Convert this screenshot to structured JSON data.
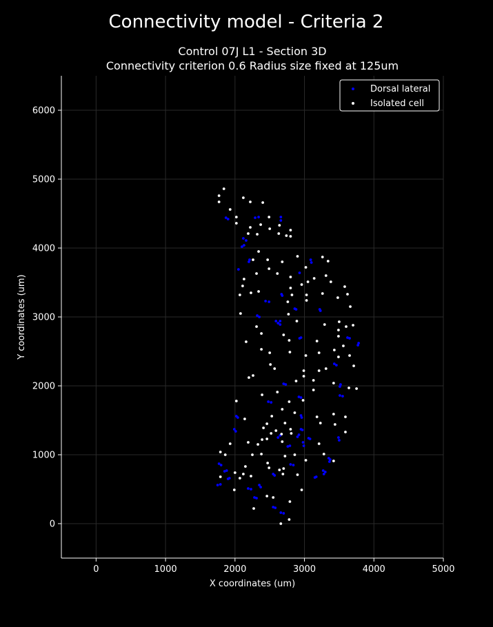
{
  "figure": {
    "suptitle": "Connectivity model - Criteria 2",
    "title_line1": "Control 07J L1 - Section 3D",
    "title_line2": "Connectivity criterion 0.6  Radius size fixed at 125um"
  },
  "colors": {
    "background": "#000000",
    "foreground": "#ffffff",
    "dorsal_lateral": "#0000ff",
    "isolated": "#ffffff",
    "grid": "#2a2a2a"
  },
  "chart_data": {
    "type": "scatter",
    "xlabel": "X coordinates (um)",
    "ylabel": "Y coordinates (um)",
    "xlim": [
      -500,
      5000
    ],
    "ylim": [
      -500,
      6500
    ],
    "xticks": [
      0,
      1000,
      2000,
      3000,
      4000,
      5000
    ],
    "yticks": [
      0,
      1000,
      2000,
      3000,
      4000,
      5000,
      6000
    ],
    "grid": true,
    "legend_position": "top-right",
    "series": [
      {
        "name": "Dorsal lateral",
        "color": "#0000ff",
        "points": [
          [
            1870,
            4440
          ],
          [
            1900,
            4420
          ],
          [
            2290,
            4440
          ],
          [
            2340,
            4450
          ],
          [
            2660,
            4450
          ],
          [
            2660,
            4400
          ],
          [
            2120,
            4140
          ],
          [
            2160,
            4110
          ],
          [
            2100,
            4020
          ],
          [
            2130,
            4040
          ],
          [
            2050,
            3690
          ],
          [
            2200,
            3800
          ],
          [
            2210,
            3830
          ],
          [
            3090,
            3830
          ],
          [
            3100,
            3790
          ],
          [
            2930,
            3640
          ],
          [
            2440,
            3230
          ],
          [
            2490,
            3220
          ],
          [
            2670,
            3330
          ],
          [
            2680,
            3310
          ],
          [
            2860,
            3120
          ],
          [
            2880,
            3110
          ],
          [
            3220,
            3110
          ],
          [
            3230,
            3090
          ],
          [
            2320,
            3020
          ],
          [
            2350,
            3000
          ],
          [
            2590,
            2940
          ],
          [
            2620,
            2910
          ],
          [
            2650,
            2940
          ],
          [
            2650,
            2890
          ],
          [
            2930,
            2690
          ],
          [
            2950,
            2700
          ],
          [
            3620,
            2700
          ],
          [
            3650,
            2690
          ],
          [
            3780,
            2620
          ],
          [
            3770,
            2590
          ],
          [
            3430,
            2320
          ],
          [
            3460,
            2300
          ],
          [
            2700,
            2030
          ],
          [
            2730,
            2020
          ],
          [
            3510,
            1990
          ],
          [
            3520,
            2020
          ],
          [
            3510,
            1860
          ],
          [
            3550,
            1850
          ],
          [
            2920,
            1840
          ],
          [
            2950,
            1830
          ],
          [
            2480,
            1770
          ],
          [
            2520,
            1760
          ],
          [
            2020,
            1560
          ],
          [
            2040,
            1540
          ],
          [
            2950,
            1570
          ],
          [
            2960,
            1540
          ],
          [
            1990,
            1370
          ],
          [
            2010,
            1340
          ],
          [
            2970,
            1360
          ],
          [
            2950,
            1370
          ],
          [
            2620,
            1250
          ],
          [
            2650,
            1280
          ],
          [
            2900,
            1260
          ],
          [
            2920,
            1290
          ],
          [
            3060,
            1240
          ],
          [
            3080,
            1230
          ],
          [
            2980,
            1180
          ],
          [
            2990,
            1130
          ],
          [
            3490,
            1250
          ],
          [
            3500,
            1210
          ],
          [
            2760,
            1120
          ],
          [
            2790,
            1130
          ],
          [
            3350,
            950
          ],
          [
            3370,
            930
          ],
          [
            3360,
            900
          ],
          [
            1770,
            870
          ],
          [
            1800,
            850
          ],
          [
            2800,
            860
          ],
          [
            2840,
            850
          ],
          [
            1850,
            760
          ],
          [
            1880,
            770
          ],
          [
            2550,
            720
          ],
          [
            2570,
            700
          ],
          [
            3270,
            770
          ],
          [
            3300,
            750
          ],
          [
            3280,
            720
          ],
          [
            1900,
            650
          ],
          [
            1920,
            660
          ],
          [
            3150,
            670
          ],
          [
            3170,
            680
          ],
          [
            1750,
            560
          ],
          [
            1790,
            570
          ],
          [
            2190,
            510
          ],
          [
            2230,
            500
          ],
          [
            2350,
            560
          ],
          [
            2370,
            530
          ],
          [
            2280,
            380
          ],
          [
            2310,
            370
          ],
          [
            2550,
            240
          ],
          [
            2580,
            230
          ],
          [
            2660,
            160
          ],
          [
            2700,
            150
          ]
        ]
      },
      {
        "name": "Isolated cell",
        "color": "#ffffff",
        "points": [
          [
            1840,
            4860
          ],
          [
            1770,
            4760
          ],
          [
            2120,
            4730
          ],
          [
            1770,
            4670
          ],
          [
            2220,
            4670
          ],
          [
            2400,
            4660
          ],
          [
            1930,
            4560
          ],
          [
            2020,
            4450
          ],
          [
            2490,
            4450
          ],
          [
            2020,
            4360
          ],
          [
            2370,
            4340
          ],
          [
            2220,
            4300
          ],
          [
            2640,
            4330
          ],
          [
            2500,
            4280
          ],
          [
            2800,
            4260
          ],
          [
            2190,
            4210
          ],
          [
            2320,
            4200
          ],
          [
            2630,
            4210
          ],
          [
            2740,
            4180
          ],
          [
            2800,
            4170
          ],
          [
            2340,
            3950
          ],
          [
            2900,
            3880
          ],
          [
            3260,
            3870
          ],
          [
            3340,
            3810
          ],
          [
            2260,
            3830
          ],
          [
            2470,
            3830
          ],
          [
            2680,
            3800
          ],
          [
            3020,
            3720
          ],
          [
            2490,
            3700
          ],
          [
            2310,
            3630
          ],
          [
            2610,
            3630
          ],
          [
            3310,
            3600
          ],
          [
            2800,
            3580
          ],
          [
            3140,
            3560
          ],
          [
            2130,
            3550
          ],
          [
            3050,
            3510
          ],
          [
            2960,
            3470
          ],
          [
            3380,
            3510
          ],
          [
            3580,
            3440
          ],
          [
            2110,
            3450
          ],
          [
            2800,
            3420
          ],
          [
            2230,
            3350
          ],
          [
            2340,
            3370
          ],
          [
            3260,
            3340
          ],
          [
            2070,
            3320
          ],
          [
            2820,
            3320
          ],
          [
            3620,
            3330
          ],
          [
            3030,
            3320
          ],
          [
            3480,
            3280
          ],
          [
            3030,
            3240
          ],
          [
            2760,
            3220
          ],
          [
            3660,
            3150
          ],
          [
            2080,
            3050
          ],
          [
            2770,
            3040
          ],
          [
            2890,
            2940
          ],
          [
            3500,
            2930
          ],
          [
            3290,
            2890
          ],
          [
            3700,
            2880
          ],
          [
            2310,
            2860
          ],
          [
            3600,
            2860
          ],
          [
            3490,
            2810
          ],
          [
            2380,
            2760
          ],
          [
            2700,
            2740
          ],
          [
            3490,
            2720
          ],
          [
            2780,
            2660
          ],
          [
            3180,
            2650
          ],
          [
            2160,
            2640
          ],
          [
            3560,
            2580
          ],
          [
            2380,
            2530
          ],
          [
            3430,
            2520
          ],
          [
            3210,
            2480
          ],
          [
            2790,
            2490
          ],
          [
            2500,
            2480
          ],
          [
            3020,
            2440
          ],
          [
            3490,
            2420
          ],
          [
            3650,
            2440
          ],
          [
            2510,
            2310
          ],
          [
            3710,
            2290
          ],
          [
            2570,
            2250
          ],
          [
            3310,
            2250
          ],
          [
            3210,
            2220
          ],
          [
            2990,
            2220
          ],
          [
            2260,
            2150
          ],
          [
            2990,
            2140
          ],
          [
            2200,
            2120
          ],
          [
            3130,
            2080
          ],
          [
            3420,
            2040
          ],
          [
            2880,
            2070
          ],
          [
            3640,
            1970
          ],
          [
            2610,
            1910
          ],
          [
            3750,
            1960
          ],
          [
            3130,
            1940
          ],
          [
            2390,
            1870
          ],
          [
            2980,
            1790
          ],
          [
            2020,
            1780
          ],
          [
            2780,
            1770
          ],
          [
            2680,
            1660
          ],
          [
            3420,
            1590
          ],
          [
            2860,
            1610
          ],
          [
            2530,
            1560
          ],
          [
            3180,
            1550
          ],
          [
            3590,
            1550
          ],
          [
            2140,
            1520
          ],
          [
            2460,
            1450
          ],
          [
            2720,
            1460
          ],
          [
            3230,
            1460
          ],
          [
            3440,
            1440
          ],
          [
            2800,
            1370
          ],
          [
            2410,
            1390
          ],
          [
            2590,
            1350
          ],
          [
            3590,
            1330
          ],
          [
            2520,
            1310
          ],
          [
            2670,
            1300
          ],
          [
            2810,
            1310
          ],
          [
            2460,
            1230
          ],
          [
            2680,
            1190
          ],
          [
            3210,
            1160
          ],
          [
            1930,
            1160
          ],
          [
            2390,
            1220
          ],
          [
            2190,
            1180
          ],
          [
            2330,
            1150
          ],
          [
            1790,
            1040
          ],
          [
            2250,
            1000
          ],
          [
            1860,
            1000
          ],
          [
            2720,
            980
          ],
          [
            3280,
            1010
          ],
          [
            2860,
            1000
          ],
          [
            2380,
            1010
          ],
          [
            3020,
            920
          ],
          [
            2470,
            880
          ],
          [
            3420,
            910
          ],
          [
            2700,
            800
          ],
          [
            2640,
            780
          ],
          [
            2490,
            810
          ],
          [
            2150,
            830
          ],
          [
            2000,
            740
          ],
          [
            2120,
            720
          ],
          [
            2230,
            690
          ],
          [
            1790,
            680
          ],
          [
            2690,
            720
          ],
          [
            2900,
            710
          ],
          [
            2070,
            660
          ],
          [
            2960,
            490
          ],
          [
            1990,
            490
          ],
          [
            2460,
            400
          ],
          [
            2550,
            380
          ],
          [
            2790,
            320
          ],
          [
            2270,
            220
          ],
          [
            2780,
            60
          ],
          [
            2660,
            0
          ]
        ]
      }
    ]
  }
}
